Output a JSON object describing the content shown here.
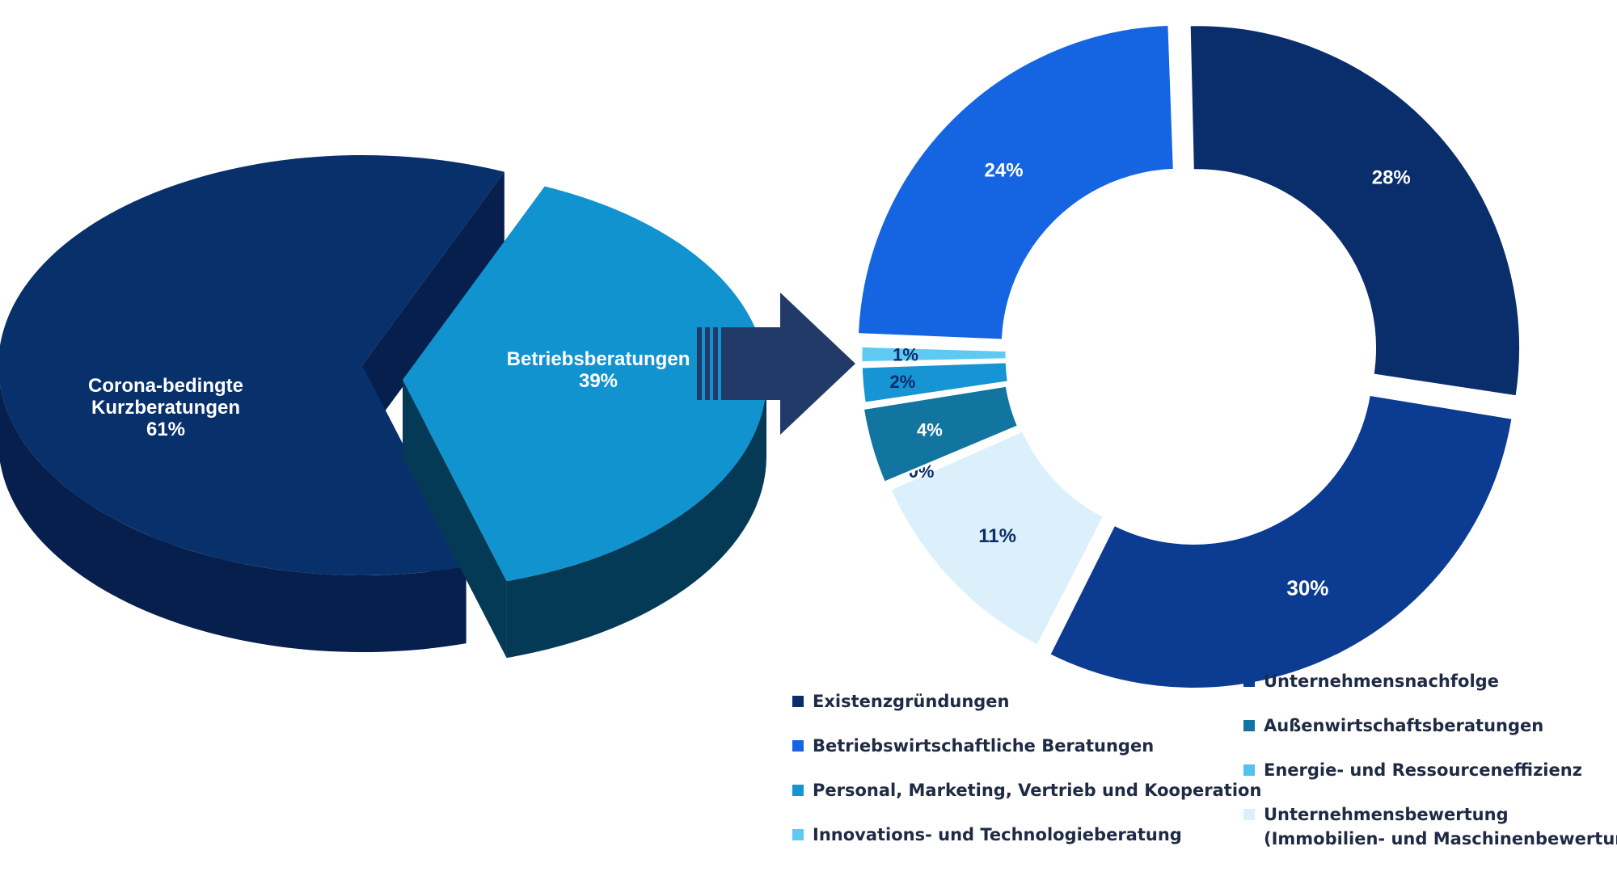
{
  "chart_data": [
    {
      "type": "pie",
      "style": "3d-exploded",
      "categories": [
        "Corona-bedingte Kurzberatungen",
        "Betriebsberatungen"
      ],
      "values": [
        61,
        39
      ],
      "labels": [
        {
          "lines": [
            "Corona-bedingte",
            "Kurzberatungen",
            "61%"
          ]
        },
        {
          "lines": [
            "Betriebsberatungen",
            "39%"
          ]
        }
      ],
      "colors": [
        "#08306b",
        "#1193d0"
      ],
      "side_colors": [
        "#061f4d",
        "#053a56"
      ]
    },
    {
      "type": "pie",
      "style": "donut",
      "categories": [
        "Unternehmensnachfolge",
        "Unternehmensbewertung (Immobilien- und Maschinenbewertung)",
        "Energie- und Ressourceneffizienz",
        "Außenwirtschaftsberatungen",
        "Personal, Marketing, Vertrieb und Kooperation",
        "Innovations- und Technologieberatung",
        "Betriebswirtschaftliche Beratungen",
        "Existenzgründungen"
      ],
      "values": [
        30,
        11,
        0,
        4,
        2,
        1,
        24,
        28
      ],
      "value_labels": [
        "30%",
        "11%",
        "0%",
        "4%",
        "2%",
        "1%",
        "24%",
        "28%"
      ],
      "colors": [
        "#0c3b92",
        "#dcf0fc",
        "#52c3ef",
        "#12759f",
        "#1694d3",
        "#5ecaf2",
        "#1565e2",
        "#0a2d6b"
      ],
      "legend_placement": "bottom",
      "legend": [
        {
          "label": "Existenzgründungen",
          "color": "#0a2d6b"
        },
        {
          "label": "Betriebswirtschaftliche Beratungen",
          "color": "#1565e2"
        },
        {
          "label": "Personal, Marketing, Vertrieb und Kooperation",
          "color": "#1694d3"
        },
        {
          "label": "Innovations- und Technologieberatung",
          "color": "#5ecaf2"
        },
        {
          "label": "Unternehmensnachfolge",
          "color": "#0c3b92"
        },
        {
          "label": "Außenwirtschaftsberatungen",
          "color": "#12759f"
        },
        {
          "label": "Energie- und Ressourceneffizienz",
          "color": "#52c3ef"
        },
        {
          "label": "Unternehmensbewertung",
          "label_line2": "(Immobilien- und Maschinenbewertung)",
          "color": "#dcf0fc"
        }
      ]
    }
  ],
  "arrow": {
    "color": "#213a68",
    "icon": "right-arrow-icon"
  }
}
